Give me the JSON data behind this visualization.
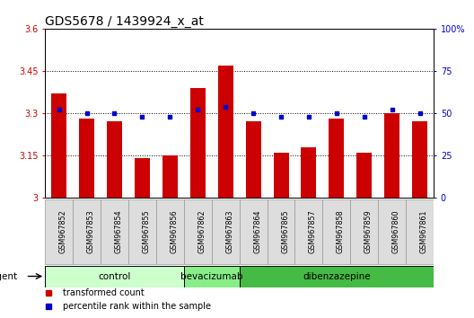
{
  "title": "GDS5678 / 1439924_x_at",
  "samples": [
    "GSM967852",
    "GSM967853",
    "GSM967854",
    "GSM967855",
    "GSM967856",
    "GSM967862",
    "GSM967863",
    "GSM967864",
    "GSM967865",
    "GSM967857",
    "GSM967858",
    "GSM967859",
    "GSM967860",
    "GSM967861"
  ],
  "bar_values": [
    3.37,
    3.28,
    3.27,
    3.14,
    3.15,
    3.39,
    3.47,
    3.27,
    3.16,
    3.18,
    3.28,
    3.16,
    3.3,
    3.27
  ],
  "percentile_values": [
    52,
    50,
    50,
    48,
    48,
    52,
    54,
    50,
    48,
    48,
    50,
    48,
    52,
    50
  ],
  "bar_color": "#cc0000",
  "percentile_color": "#0000cc",
  "ylim_left": [
    3.0,
    3.6
  ],
  "ylim_right": [
    0,
    100
  ],
  "yticks_left": [
    3.0,
    3.15,
    3.3,
    3.45,
    3.6
  ],
  "ytick_labels_left": [
    "3",
    "3.15",
    "3.3",
    "3.45",
    "3.6"
  ],
  "yticks_right": [
    0,
    25,
    50,
    75,
    100
  ],
  "ytick_labels_right": [
    "0",
    "25",
    "50",
    "75",
    "100%"
  ],
  "hlines": [
    3.15,
    3.3,
    3.45
  ],
  "groups": [
    {
      "label": "control",
      "start": 0,
      "end": 5,
      "color": "#ccffcc"
    },
    {
      "label": "bevacizumab",
      "start": 5,
      "end": 7,
      "color": "#88ee88"
    },
    {
      "label": "dibenzazepine",
      "start": 7,
      "end": 14,
      "color": "#44bb44"
    }
  ],
  "agent_label": "agent",
  "legend_items": [
    {
      "label": "transformed count",
      "color": "#cc0000",
      "marker": "s"
    },
    {
      "label": "percentile rank within the sample",
      "color": "#0000cc",
      "marker": "s"
    }
  ],
  "background_color": "#ffffff",
  "plot_bg": "#ffffff",
  "title_fontsize": 10,
  "tick_fontsize": 7,
  "bar_width": 0.55,
  "n_samples": 14
}
